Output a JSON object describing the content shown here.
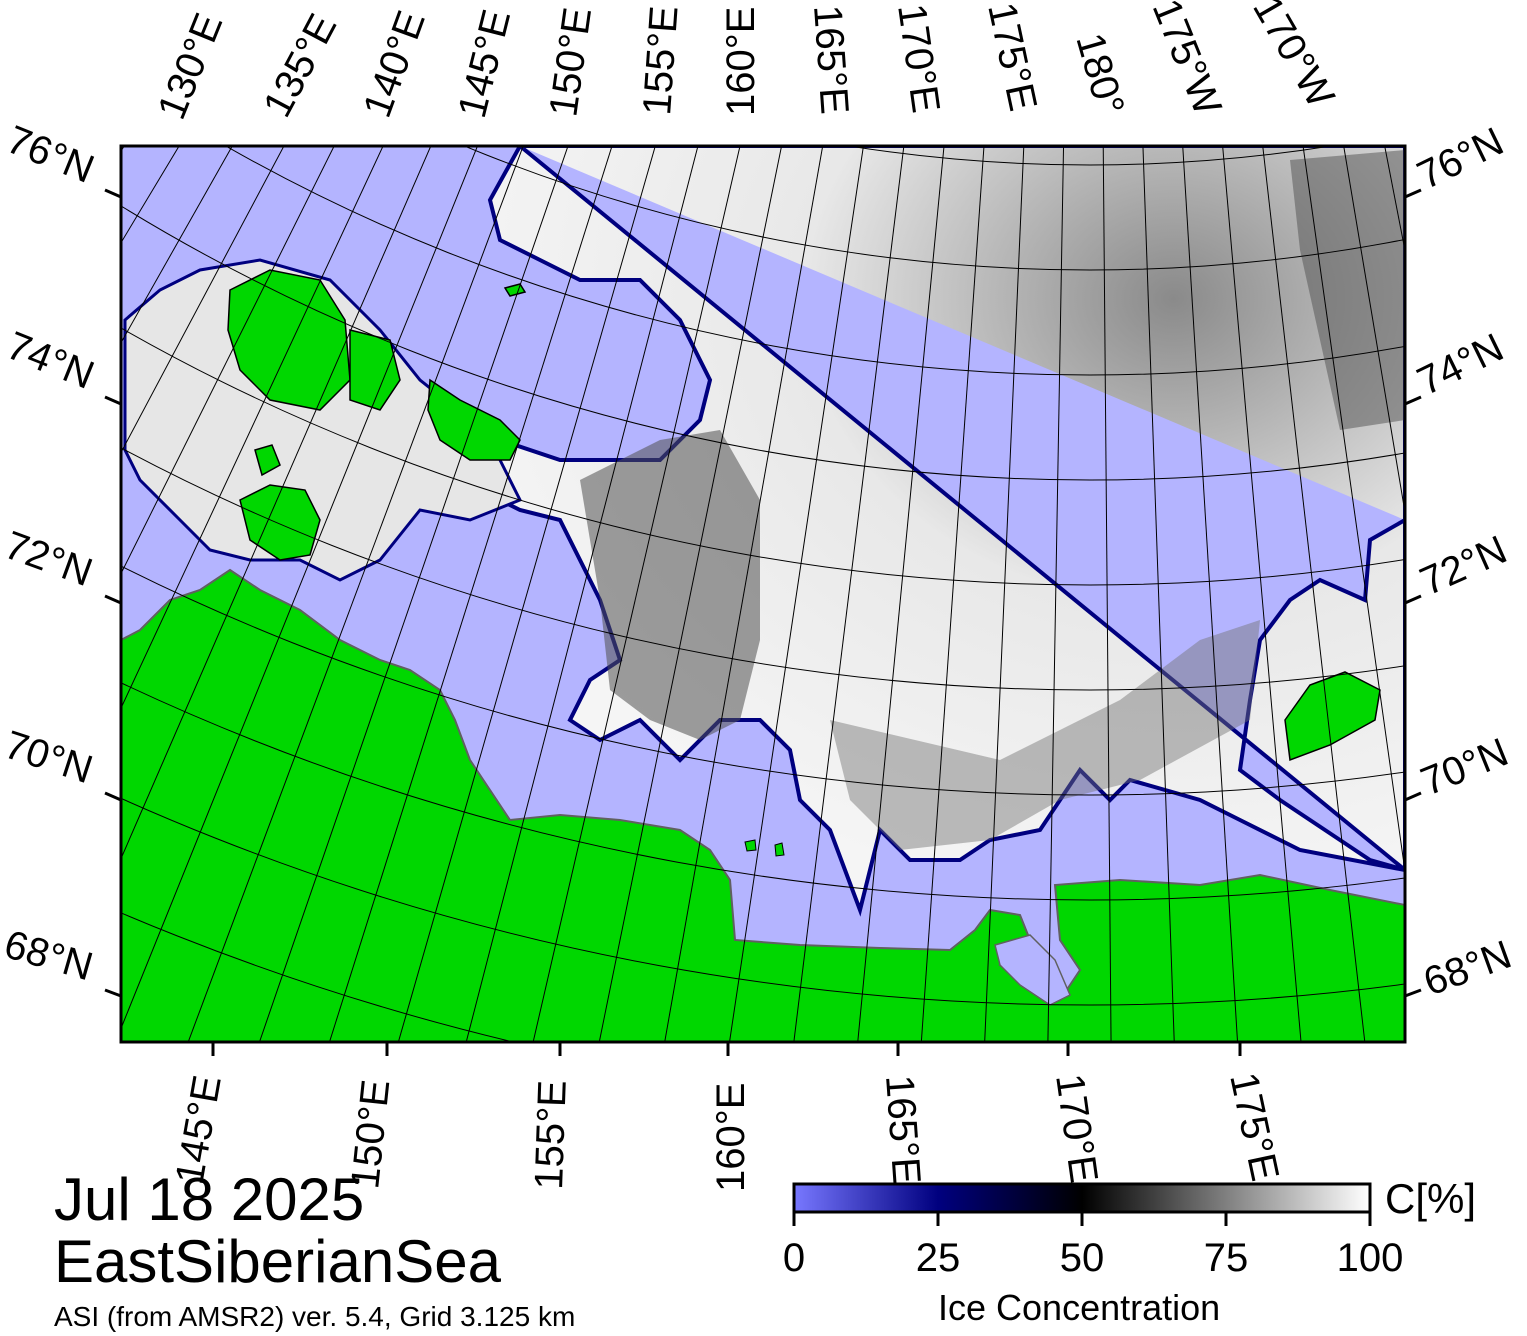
{
  "map": {
    "date": "Jul 18 2025",
    "region": "EastSiberianSea",
    "source": "ASI (from AMSR2) ver. 5.4,  Grid 3.125 km"
  },
  "colors": {
    "land": "#00d700",
    "open_water": "#b4b4ff",
    "ice_high": "#ffffff",
    "ice_mid": "#000000",
    "ice_low": "#00007f",
    "grid_line": "#000000"
  },
  "colorbar": {
    "title": "Ice Concentration",
    "unit": "C[%]",
    "ticks": [
      "0",
      "25",
      "50",
      "75",
      "100"
    ],
    "stops": [
      {
        "value": 0,
        "color": "#7878ff"
      },
      {
        "value": 25,
        "color": "#00007f"
      },
      {
        "value": 50,
        "color": "#000000"
      },
      {
        "value": 100,
        "color": "#ffffff"
      }
    ]
  },
  "axes": {
    "top_labels": [
      "130°E",
      "135°E",
      "140°E",
      "145°E",
      "150°E",
      "155°E",
      "160°E",
      "165°E",
      "170°E",
      "175°E",
      "180°",
      "175°W",
      "170°W"
    ],
    "bottom_labels": [
      "145°E",
      "150°E",
      "155°E",
      "160°E",
      "165°E",
      "170°E",
      "175°E"
    ],
    "left_labels": [
      "76°N",
      "74°N",
      "72°N",
      "70°N",
      "68°N"
    ],
    "right_labels": [
      "76°N",
      "74°N",
      "72°N",
      "70°N",
      "68°N"
    ]
  }
}
